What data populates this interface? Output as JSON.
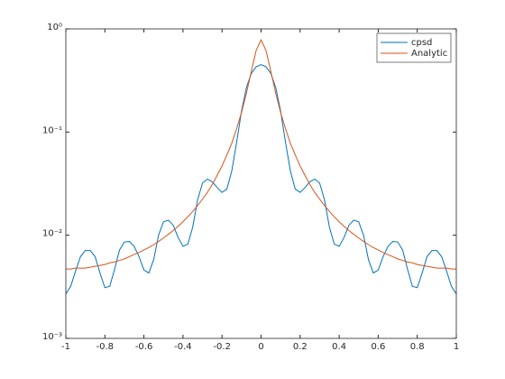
{
  "chart_data": {
    "type": "line",
    "log_y": true,
    "legend_position": "upper right",
    "box": true,
    "x": [
      -1,
      -0.975,
      -0.95,
      -0.925,
      -0.9,
      -0.875,
      -0.85,
      -0.825,
      -0.8,
      -0.775,
      -0.75,
      -0.725,
      -0.7,
      -0.675,
      -0.65,
      -0.625,
      -0.6,
      -0.575,
      -0.55,
      -0.525,
      -0.5,
      -0.475,
      -0.45,
      -0.425,
      -0.4,
      -0.375,
      -0.35,
      -0.325,
      -0.3,
      -0.275,
      -0.25,
      -0.225,
      -0.2,
      -0.175,
      -0.15,
      -0.125,
      -0.1,
      -0.075,
      -0.05,
      -0.025,
      0,
      0.025,
      0.05,
      0.075,
      0.1,
      0.125,
      0.15,
      0.175,
      0.2,
      0.225,
      0.25,
      0.275,
      0.3,
      0.325,
      0.35,
      0.375,
      0.4,
      0.425,
      0.45,
      0.475,
      0.5,
      0.525,
      0.55,
      0.575,
      0.6,
      0.625,
      0.65,
      0.675,
      0.7,
      0.725,
      0.75,
      0.775,
      0.8,
      0.825,
      0.85,
      0.875,
      0.9,
      0.925,
      0.95,
      0.975,
      1
    ],
    "series": [
      {
        "name": "cpsd",
        "color": "#0072bd",
        "values": [
          0.0027,
          0.0032,
          0.0045,
          0.0062,
          0.0071,
          0.0071,
          0.0062,
          0.0043,
          0.0031,
          0.0032,
          0.0047,
          0.0072,
          0.0086,
          0.0087,
          0.0078,
          0.0062,
          0.0046,
          0.0043,
          0.0058,
          0.01,
          0.0135,
          0.014,
          0.0125,
          0.0095,
          0.0078,
          0.0082,
          0.012,
          0.022,
          0.032,
          0.035,
          0.033,
          0.029,
          0.026,
          0.028,
          0.042,
          0.08,
          0.16,
          0.27,
          0.37,
          0.43,
          0.45,
          0.43,
          0.37,
          0.27,
          0.16,
          0.08,
          0.042,
          0.028,
          0.026,
          0.029,
          0.033,
          0.035,
          0.032,
          0.022,
          0.012,
          0.0082,
          0.0078,
          0.0095,
          0.0125,
          0.014,
          0.0135,
          0.01,
          0.0058,
          0.0043,
          0.0046,
          0.0062,
          0.0078,
          0.0087,
          0.0086,
          0.0072,
          0.0047,
          0.0032,
          0.0031,
          0.0043,
          0.0062,
          0.0071,
          0.0071,
          0.0062,
          0.0045,
          0.0032,
          0.0027
        ]
      },
      {
        "name": "Analytic",
        "color": "#d95319",
        "values": [
          0.0047,
          0.0047,
          0.0048,
          0.0048,
          0.0048,
          0.0049,
          0.005,
          0.0051,
          0.0052,
          0.0054,
          0.0055,
          0.0057,
          0.0059,
          0.0062,
          0.0065,
          0.0068,
          0.0072,
          0.0076,
          0.0081,
          0.0087,
          0.0094,
          0.0102,
          0.0111,
          0.0122,
          0.0135,
          0.0151,
          0.017,
          0.0194,
          0.0224,
          0.026,
          0.031,
          0.038,
          0.047,
          0.06,
          0.078,
          0.108,
          0.155,
          0.238,
          0.387,
          0.62,
          0.78,
          0.62,
          0.387,
          0.238,
          0.155,
          0.108,
          0.078,
          0.06,
          0.047,
          0.038,
          0.031,
          0.026,
          0.0224,
          0.0194,
          0.017,
          0.0151,
          0.0135,
          0.0122,
          0.0111,
          0.0102,
          0.0094,
          0.0087,
          0.0081,
          0.0076,
          0.0072,
          0.0068,
          0.0065,
          0.0062,
          0.0059,
          0.0057,
          0.0055,
          0.0054,
          0.0052,
          0.0051,
          0.005,
          0.0049,
          0.0048,
          0.0048,
          0.0048,
          0.0047,
          0.0047
        ]
      }
    ],
    "xlim": [
      -1,
      1
    ],
    "xticks": [
      -1,
      -0.8,
      -0.6,
      -0.4,
      -0.2,
      0,
      0.2,
      0.4,
      0.6,
      0.8,
      1
    ],
    "ylim": [
      0.001,
      1
    ],
    "yticks": [
      {
        "value": 0.001,
        "label": "10⁻³"
      },
      {
        "value": 0.01,
        "label": "10⁻²"
      },
      {
        "value": 0.1,
        "label": "10⁻¹"
      },
      {
        "value": 1,
        "label": "10⁰"
      }
    ]
  }
}
